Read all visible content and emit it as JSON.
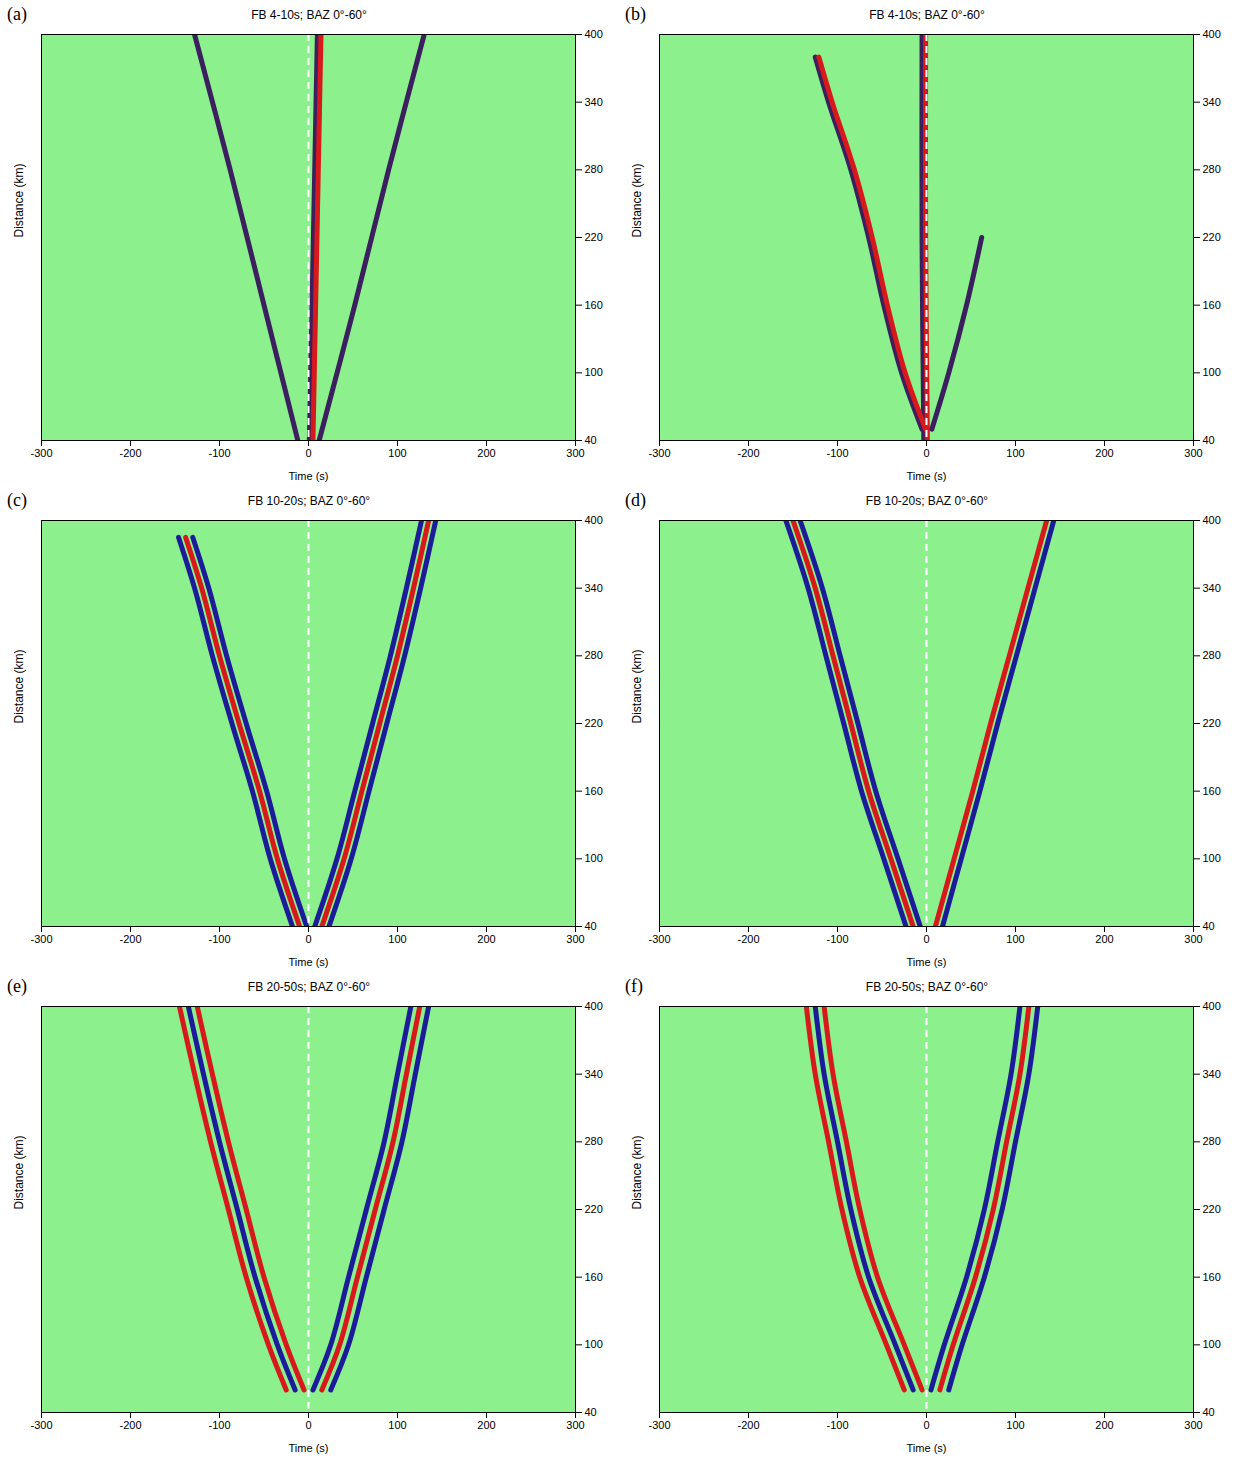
{
  "chart_data": [
    {
      "type": "line",
      "panel": "(a)",
      "title": "FB 4-10s; BAZ  0°-60°",
      "x_label": "Time (s)",
      "y_label": "Distance (km)",
      "xlim": [
        -300,
        300
      ],
      "xticks": [
        -300,
        -200,
        -100,
        0,
        100,
        200,
        300
      ],
      "ylim": [
        40,
        400
      ],
      "yticks": [
        40,
        100,
        160,
        220,
        280,
        340,
        400
      ],
      "vline": 0,
      "series": [
        {
          "color": "#3b1f5e",
          "time": [
            1,
            4,
            7,
            10
          ],
          "distance": [
            40,
            160,
            280,
            400
          ]
        },
        {
          "color": "#d7191c",
          "time": [
            5,
            8,
            11,
            14
          ],
          "distance": [
            40,
            160,
            280,
            400
          ]
        },
        {
          "color": "#3b1f5e",
          "time": [
            12,
            52,
            90,
            130
          ],
          "distance": [
            40,
            160,
            280,
            400
          ]
        },
        {
          "color": "#3b1f5e",
          "time": [
            -12,
            -50,
            -88,
            -128
          ],
          "distance": [
            40,
            160,
            280,
            400
          ]
        }
      ]
    },
    {
      "type": "line",
      "panel": "(b)",
      "title": "FB 4-10s; BAZ  0°-60°",
      "x_label": "Time (s)",
      "y_label": "Distance (km)",
      "xlim": [
        -300,
        300
      ],
      "xticks": [
        -300,
        -200,
        -100,
        0,
        100,
        200,
        300
      ],
      "ylim": [
        40,
        400
      ],
      "yticks": [
        40,
        100,
        160,
        220,
        280,
        340,
        400
      ],
      "vline": 0,
      "series": [
        {
          "color": "#3b1f5e",
          "time": [
            -3,
            -5,
            -5
          ],
          "distance": [
            40,
            220,
            400
          ]
        },
        {
          "color": "#d7191c",
          "time": [
            1,
            -1,
            -1
          ],
          "distance": [
            40,
            220,
            400
          ]
        },
        {
          "color": "#3b1f5e",
          "time": [
            -5,
            -28,
            -48,
            -65,
            -85,
            -110,
            -125
          ],
          "distance": [
            50,
            100,
            160,
            220,
            280,
            340,
            380
          ]
        },
        {
          "color": "#d7191c",
          "time": [
            -1,
            -24,
            -44,
            -61,
            -81,
            -106,
            -121
          ],
          "distance": [
            50,
            100,
            160,
            220,
            280,
            340,
            380
          ]
        },
        {
          "color": "#3b1f5e",
          "time": [
            6,
            25,
            45,
            62
          ],
          "distance": [
            50,
            100,
            160,
            220
          ]
        }
      ]
    },
    {
      "type": "line",
      "panel": "(c)",
      "title": "FB 10-20s; BAZ  0°-60°",
      "x_label": "Time (s)",
      "y_label": "Distance (km)",
      "xlim": [
        -300,
        300
      ],
      "xticks": [
        -300,
        -200,
        -100,
        0,
        100,
        200,
        300
      ],
      "ylim": [
        40,
        400
      ],
      "yticks": [
        40,
        100,
        160,
        220,
        280,
        340,
        400
      ],
      "vline": 0,
      "series": [
        {
          "color": "#1c1c9a",
          "time": [
            -18,
            -43,
            -63,
            -86,
            -108,
            -128,
            -146
          ],
          "distance": [
            40,
            100,
            160,
            220,
            280,
            340,
            385
          ]
        },
        {
          "color": "#d7191c",
          "time": [
            -10,
            -35,
            -55,
            -78,
            -100,
            -120,
            -138
          ],
          "distance": [
            40,
            100,
            160,
            220,
            280,
            340,
            385
          ]
        },
        {
          "color": "#1c1c9a",
          "time": [
            -2,
            -27,
            -47,
            -70,
            -92,
            -112,
            -130
          ],
          "distance": [
            40,
            100,
            160,
            220,
            280,
            340,
            385
          ]
        },
        {
          "color": "#1c1c9a",
          "time": [
            7,
            32,
            52,
            72,
            92,
            110,
            127
          ],
          "distance": [
            40,
            100,
            160,
            220,
            280,
            340,
            400
          ]
        },
        {
          "color": "#d7191c",
          "time": [
            15,
            40,
            60,
            80,
            100,
            118,
            135
          ],
          "distance": [
            40,
            100,
            160,
            220,
            280,
            340,
            400
          ]
        },
        {
          "color": "#1c1c9a",
          "time": [
            23,
            48,
            68,
            88,
            108,
            126,
            143
          ],
          "distance": [
            40,
            100,
            160,
            220,
            280,
            340,
            400
          ]
        }
      ]
    },
    {
      "type": "line",
      "panel": "(d)",
      "title": "FB 10-20s; BAZ  0°-60°",
      "x_label": "Time (s)",
      "y_label": "Distance (km)",
      "xlim": [
        -300,
        300
      ],
      "xticks": [
        -300,
        -200,
        -100,
        0,
        100,
        200,
        300
      ],
      "ylim": [
        40,
        400
      ],
      "yticks": [
        40,
        100,
        160,
        220,
        280,
        340,
        400
      ],
      "vline": 0,
      "series": [
        {
          "color": "#1c1c9a",
          "time": [
            -23,
            -48,
            -73,
            -93,
            -113,
            -133,
            -158
          ],
          "distance": [
            40,
            100,
            160,
            220,
            280,
            340,
            400
          ]
        },
        {
          "color": "#d7191c",
          "time": [
            -15,
            -40,
            -65,
            -85,
            -105,
            -125,
            -150
          ],
          "distance": [
            40,
            100,
            160,
            220,
            280,
            340,
            400
          ]
        },
        {
          "color": "#1c1c9a",
          "time": [
            -7,
            -32,
            -57,
            -77,
            -97,
            -117,
            -142
          ],
          "distance": [
            40,
            100,
            160,
            220,
            280,
            340,
            400
          ]
        },
        {
          "color": "#d7191c",
          "time": [
            10,
            31,
            52,
            72,
            93,
            114,
            135
          ],
          "distance": [
            40,
            100,
            160,
            220,
            280,
            340,
            400
          ]
        },
        {
          "color": "#1c1c9a",
          "time": [
            18,
            39,
            60,
            80,
            101,
            122,
            143
          ],
          "distance": [
            40,
            100,
            160,
            220,
            280,
            340,
            400
          ]
        }
      ]
    },
    {
      "type": "line",
      "panel": "(e)",
      "title": "FB 20-50s; BAZ  0°-60°",
      "x_label": "Time (s)",
      "y_label": "Distance (km)",
      "xlim": [
        -300,
        300
      ],
      "xticks": [
        -300,
        -200,
        -100,
        0,
        100,
        200,
        300
      ],
      "ylim": [
        40,
        400
      ],
      "yticks": [
        40,
        100,
        160,
        220,
        280,
        340,
        400
      ],
      "vline": 0,
      "series": [
        {
          "color": "#d7191c",
          "time": [
            -25,
            -45,
            -70,
            -90,
            -110,
            -128,
            -145
          ],
          "distance": [
            60,
            100,
            160,
            220,
            280,
            340,
            400
          ]
        },
        {
          "color": "#1c1c9a",
          "time": [
            -15,
            -35,
            -60,
            -80,
            -100,
            -118,
            -135
          ],
          "distance": [
            60,
            100,
            160,
            220,
            280,
            340,
            400
          ]
        },
        {
          "color": "#d7191c",
          "time": [
            -5,
            -25,
            -50,
            -70,
            -90,
            -108,
            -125
          ],
          "distance": [
            60,
            100,
            160,
            220,
            280,
            340,
            400
          ]
        },
        {
          "color": "#1c1c9a",
          "time": [
            5,
            25,
            45,
            65,
            85,
            100,
            115
          ],
          "distance": [
            60,
            100,
            160,
            220,
            280,
            340,
            400
          ]
        },
        {
          "color": "#d7191c",
          "time": [
            15,
            35,
            55,
            75,
            95,
            110,
            125
          ],
          "distance": [
            60,
            100,
            160,
            220,
            280,
            340,
            400
          ]
        },
        {
          "color": "#1c1c9a",
          "time": [
            25,
            45,
            65,
            85,
            105,
            120,
            135
          ],
          "distance": [
            60,
            100,
            160,
            220,
            280,
            340,
            400
          ]
        }
      ]
    },
    {
      "type": "line",
      "panel": "(f)",
      "title": "FB 20-50s; BAZ  0°-60°",
      "x_label": "Time (s)",
      "y_label": "Distance (km)",
      "xlim": [
        -300,
        300
      ],
      "xticks": [
        -300,
        -200,
        -100,
        0,
        100,
        200,
        300
      ],
      "ylim": [
        40,
        400
      ],
      "yticks": [
        40,
        100,
        160,
        220,
        280,
        340,
        400
      ],
      "vline": 0,
      "series": [
        {
          "color": "#d7191c",
          "time": [
            -25,
            -45,
            -75,
            -95,
            -110,
            -125,
            -135
          ],
          "distance": [
            60,
            100,
            160,
            220,
            280,
            340,
            400
          ]
        },
        {
          "color": "#1c1c9a",
          "time": [
            -15,
            -35,
            -65,
            -85,
            -100,
            -115,
            -125
          ],
          "distance": [
            60,
            100,
            160,
            220,
            280,
            340,
            400
          ]
        },
        {
          "color": "#d7191c",
          "time": [
            -5,
            -25,
            -55,
            -75,
            -90,
            -105,
            -115
          ],
          "distance": [
            60,
            100,
            160,
            220,
            280,
            340,
            400
          ]
        },
        {
          "color": "#1c1c9a",
          "time": [
            5,
            20,
            45,
            65,
            80,
            95,
            105
          ],
          "distance": [
            60,
            100,
            160,
            220,
            280,
            340,
            400
          ]
        },
        {
          "color": "#d7191c",
          "time": [
            15,
            30,
            55,
            75,
            90,
            105,
            115
          ],
          "distance": [
            60,
            100,
            160,
            220,
            280,
            340,
            400
          ]
        },
        {
          "color": "#1c1c9a",
          "time": [
            25,
            40,
            65,
            85,
            100,
            115,
            125
          ],
          "distance": [
            60,
            100,
            160,
            220,
            280,
            340,
            400
          ]
        }
      ]
    }
  ]
}
